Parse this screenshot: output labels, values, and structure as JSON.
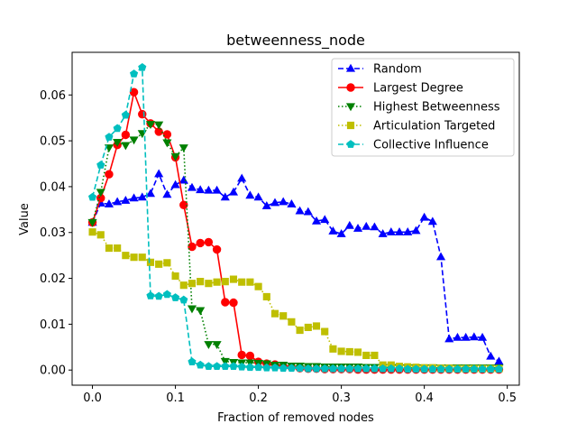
{
  "chart_data": {
    "type": "line",
    "title": "betweenness_node",
    "xlabel": "Fraction of removed nodes",
    "ylabel": "Value",
    "xlim": [
      -0.0245,
      0.5145
    ],
    "ylim": [
      -0.0033,
      0.0693
    ],
    "xticks": [
      0.0,
      0.1,
      0.2,
      0.3,
      0.4,
      0.5
    ],
    "xtick_labels": [
      "0.0",
      "0.1",
      "0.2",
      "0.3",
      "0.4",
      "0.5"
    ],
    "yticks": [
      0.0,
      0.01,
      0.02,
      0.03,
      0.04,
      0.05,
      0.06
    ],
    "ytick_labels": [
      "0.00",
      "0.01",
      "0.02",
      "0.03",
      "0.04",
      "0.05",
      "0.06"
    ],
    "legend_position": "top-right",
    "series": [
      {
        "name": "Random",
        "color": "#0000ff",
        "linestyle": "dashed",
        "marker": "triangle-up",
        "x": [
          0.0,
          0.01,
          0.02,
          0.03,
          0.04,
          0.05,
          0.06,
          0.07,
          0.08,
          0.09,
          0.1,
          0.11,
          0.12,
          0.13,
          0.14,
          0.15,
          0.16,
          0.17,
          0.18,
          0.19,
          0.2,
          0.21,
          0.22,
          0.23,
          0.24,
          0.25,
          0.26,
          0.27,
          0.28,
          0.29,
          0.3,
          0.31,
          0.32,
          0.33,
          0.34,
          0.35,
          0.36,
          0.37,
          0.38,
          0.39,
          0.4,
          0.41,
          0.42,
          0.43,
          0.44,
          0.45,
          0.46,
          0.47,
          0.48,
          0.49
        ],
        "y": [
          0.0322,
          0.0364,
          0.0362,
          0.0367,
          0.037,
          0.0375,
          0.0377,
          0.0385,
          0.0428,
          0.0383,
          0.0404,
          0.0414,
          0.0398,
          0.0393,
          0.0392,
          0.0392,
          0.0377,
          0.0388,
          0.0418,
          0.0381,
          0.0377,
          0.0358,
          0.0365,
          0.0367,
          0.0362,
          0.0347,
          0.0345,
          0.0325,
          0.0328,
          0.0303,
          0.0297,
          0.0315,
          0.0309,
          0.0313,
          0.0312,
          0.0297,
          0.0301,
          0.0301,
          0.0301,
          0.0304,
          0.0333,
          0.0324,
          0.0247,
          0.0068,
          0.0071,
          0.0071,
          0.0072,
          0.0071,
          0.003,
          0.0019
        ]
      },
      {
        "name": "Largest Degree",
        "color": "#ff0000",
        "linestyle": "solid",
        "marker": "circle",
        "x": [
          0.0,
          0.01,
          0.02,
          0.03,
          0.04,
          0.05,
          0.06,
          0.07,
          0.08,
          0.09,
          0.1,
          0.11,
          0.12,
          0.13,
          0.14,
          0.15,
          0.16,
          0.17,
          0.18,
          0.19,
          0.2,
          0.21,
          0.22,
          0.23,
          0.24,
          0.25,
          0.26,
          0.27,
          0.28,
          0.29,
          0.3,
          0.31,
          0.32,
          0.33,
          0.34,
          0.35,
          0.36,
          0.37,
          0.38,
          0.39,
          0.4,
          0.41,
          0.42,
          0.43,
          0.44,
          0.45,
          0.46,
          0.47,
          0.48,
          0.49
        ],
        "y": [
          0.0322,
          0.0375,
          0.0427,
          0.0491,
          0.0513,
          0.0606,
          0.0558,
          0.0538,
          0.052,
          0.0514,
          0.0464,
          0.036,
          0.0269,
          0.0277,
          0.0279,
          0.0263,
          0.0148,
          0.0147,
          0.0033,
          0.0031,
          0.0018,
          0.0014,
          0.0012,
          0.0008,
          0.0006,
          0.0004,
          0.0003,
          0.0003,
          0.0002,
          0.0002,
          0.0002,
          0.0002,
          0.0001,
          0.0001,
          0.0001,
          0.0001,
          0.0001,
          0.0001,
          0.0001,
          0.0001,
          0.0001,
          0.0001,
          0.0001,
          0.0001,
          0.0001,
          0.0001,
          0.0001,
          0.0001,
          0.0001,
          0.0001
        ]
      },
      {
        "name": "Highest Betweenness",
        "color": "#008000",
        "linestyle": "dotted",
        "marker": "triangle-down",
        "x": [
          0.0,
          0.01,
          0.02,
          0.03,
          0.04,
          0.05,
          0.06,
          0.07,
          0.08,
          0.09,
          0.1,
          0.11,
          0.12,
          0.13,
          0.14,
          0.15,
          0.16,
          0.17,
          0.18,
          0.19,
          0.2,
          0.21,
          0.22,
          0.23,
          0.24,
          0.25,
          0.26,
          0.27,
          0.28,
          0.29,
          0.3,
          0.31,
          0.32,
          0.33,
          0.34,
          0.35,
          0.36,
          0.37,
          0.38,
          0.39,
          0.4,
          0.41,
          0.42,
          0.43,
          0.44,
          0.45,
          0.46,
          0.47,
          0.48,
          0.49
        ],
        "y": [
          0.0322,
          0.0388,
          0.0485,
          0.0497,
          0.049,
          0.0502,
          0.0516,
          0.0536,
          0.0535,
          0.0496,
          0.0466,
          0.0485,
          0.0134,
          0.013,
          0.0056,
          0.0056,
          0.0019,
          0.0017,
          0.0016,
          0.0016,
          0.0015,
          0.0014,
          0.0011,
          0.0011,
          0.0009,
          0.0009,
          0.0008,
          0.0008,
          0.0007,
          0.0007,
          0.0007,
          0.0007,
          0.0007,
          0.0006,
          0.0006,
          0.0006,
          0.0006,
          0.0005,
          0.0005,
          0.0005,
          0.0005,
          0.0005,
          0.0005,
          0.0005,
          0.0005,
          0.0005,
          0.0005,
          0.0005,
          0.0005,
          0.0005
        ]
      },
      {
        "name": "Articulation Targeted",
        "color": "#bfbf00",
        "linestyle": "dotted",
        "marker": "square",
        "x": [
          0.0,
          0.01,
          0.02,
          0.03,
          0.04,
          0.05,
          0.06,
          0.07,
          0.08,
          0.09,
          0.1,
          0.11,
          0.12,
          0.13,
          0.14,
          0.15,
          0.16,
          0.17,
          0.18,
          0.19,
          0.2,
          0.21,
          0.22,
          0.23,
          0.24,
          0.25,
          0.26,
          0.27,
          0.28,
          0.29,
          0.3,
          0.31,
          0.32,
          0.33,
          0.34,
          0.35,
          0.36,
          0.37,
          0.38,
          0.39,
          0.4,
          0.41,
          0.42,
          0.43,
          0.44,
          0.45,
          0.46,
          0.47,
          0.48,
          0.49
        ],
        "y": [
          0.0301,
          0.0295,
          0.0266,
          0.0266,
          0.025,
          0.0246,
          0.0246,
          0.0235,
          0.0231,
          0.0234,
          0.0205,
          0.0185,
          0.0189,
          0.0193,
          0.0189,
          0.0192,
          0.0193,
          0.0198,
          0.0192,
          0.0192,
          0.0182,
          0.016,
          0.0123,
          0.0118,
          0.0105,
          0.0087,
          0.0093,
          0.0096,
          0.0084,
          0.0046,
          0.0041,
          0.004,
          0.0039,
          0.0032,
          0.0032,
          0.0011,
          0.0011,
          0.0008,
          0.0007,
          0.0006,
          0.0005,
          0.0005,
          0.0004,
          0.0004,
          0.0003,
          0.0003,
          0.0003,
          0.0003,
          0.0003,
          0.0003
        ]
      },
      {
        "name": "Collective Influence",
        "color": "#00bfbf",
        "linestyle": "dashed",
        "marker": "pentagon",
        "x": [
          0.0,
          0.01,
          0.02,
          0.03,
          0.04,
          0.05,
          0.06,
          0.07,
          0.08,
          0.09,
          0.1,
          0.11,
          0.12,
          0.13,
          0.14,
          0.15,
          0.16,
          0.17,
          0.18,
          0.19,
          0.2,
          0.21,
          0.22,
          0.23,
          0.24,
          0.25,
          0.26,
          0.27,
          0.28,
          0.29,
          0.3,
          0.31,
          0.32,
          0.33,
          0.34,
          0.35,
          0.36,
          0.37,
          0.38,
          0.39,
          0.4,
          0.41,
          0.42,
          0.43,
          0.44,
          0.45,
          0.46,
          0.47,
          0.48,
          0.49
        ],
        "y": [
          0.0377,
          0.0447,
          0.0508,
          0.0527,
          0.0556,
          0.0646,
          0.066,
          0.0162,
          0.0161,
          0.0165,
          0.0158,
          0.0153,
          0.0018,
          0.0011,
          0.0008,
          0.0008,
          0.0008,
          0.0008,
          0.0007,
          0.0006,
          0.0006,
          0.0005,
          0.0005,
          0.0004,
          0.0004,
          0.0004,
          0.0003,
          0.0003,
          0.0003,
          0.0003,
          0.0003,
          0.0003,
          0.0003,
          0.0003,
          0.0003,
          0.0003,
          0.0003,
          0.0003,
          0.0002,
          0.0002,
          0.0002,
          0.0002,
          0.0002,
          0.0002,
          0.0002,
          0.0002,
          0.0002,
          0.0002,
          0.0002,
          0.0002
        ]
      }
    ]
  }
}
